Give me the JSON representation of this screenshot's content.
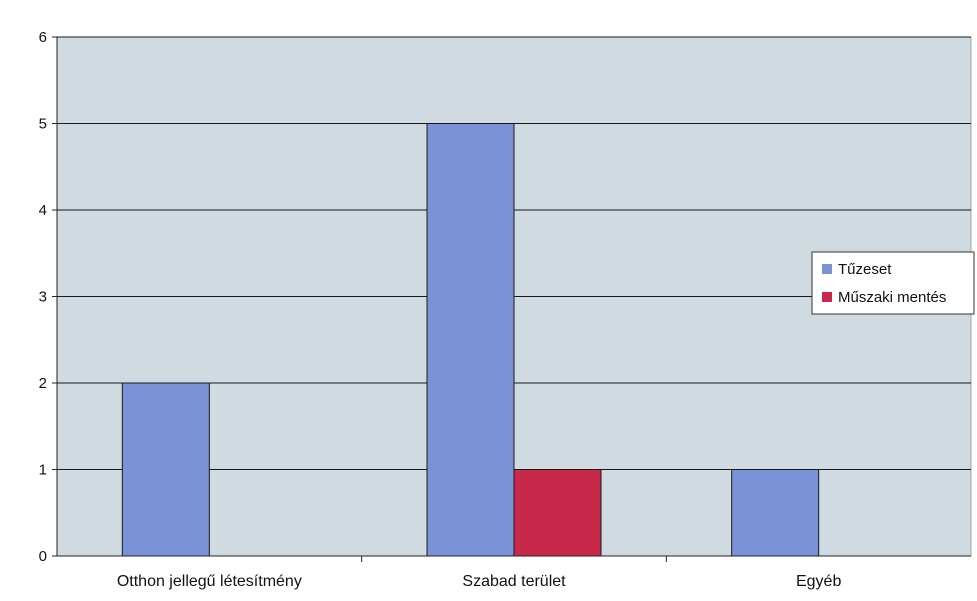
{
  "chart_data": {
    "type": "bar",
    "categories": [
      "Otthon jellegű létesítmény",
      "Szabad terület",
      "Egyéb"
    ],
    "series": [
      {
        "name": "Tűzeset",
        "values": [
          2,
          5,
          1
        ],
        "color": "#7b93d6"
      },
      {
        "name": "Műszaki mentés",
        "values": [
          0,
          1,
          0
        ],
        "color": "#c8294a"
      }
    ],
    "ylim": [
      0,
      6
    ],
    "yticks": [
      0,
      1,
      2,
      3,
      4,
      5,
      6
    ],
    "grid": true,
    "legend_position": "right",
    "plot_background": "#cfdbe0",
    "xlabel": "",
    "ylabel": "",
    "title": ""
  }
}
